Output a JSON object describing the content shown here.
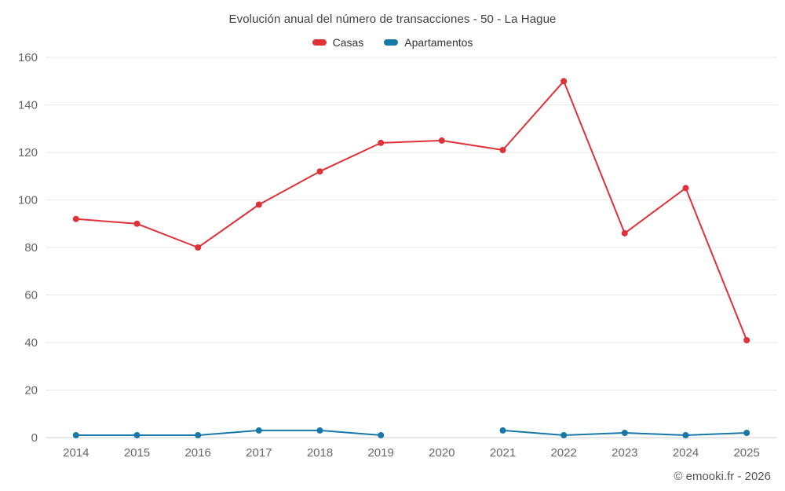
{
  "title": "Evolución anual del número de transacciones - 50 - La Hague",
  "footer": "© emooki.fr - 2026",
  "chart_data": {
    "type": "line",
    "title": "Evolución anual del número de transacciones - 50 - La Hague",
    "categories": [
      "2014",
      "2015",
      "2016",
      "2017",
      "2018",
      "2019",
      "2020",
      "2021",
      "2022",
      "2023",
      "2024",
      "2025"
    ],
    "series": [
      {
        "name": "Casas",
        "color": "#e03038",
        "values": [
          92,
          90,
          80,
          98,
          112,
          124,
          125,
          121,
          150,
          86,
          105,
          41
        ]
      },
      {
        "name": "Apartamentos",
        "color": "#1878a8",
        "values": [
          1,
          1,
          1,
          3,
          3,
          1,
          null,
          3,
          1,
          2,
          1,
          2
        ]
      }
    ],
    "xlabel": "",
    "ylabel": "",
    "ylim": [
      0,
      160
    ],
    "ytick_step": 20,
    "grid": true,
    "legend_position": "top",
    "annotation": "© emooki.fr - 2026"
  }
}
